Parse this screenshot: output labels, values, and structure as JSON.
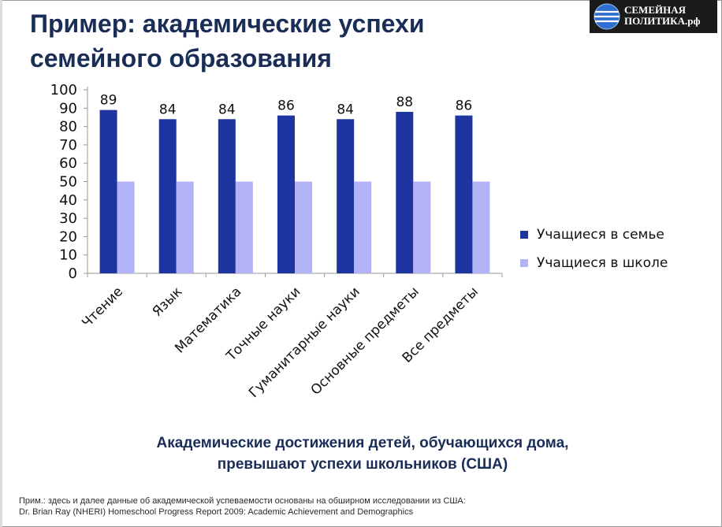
{
  "slide": {
    "title_line1": "Пример: академические успехи",
    "title_line2": "семейного образования",
    "logo_line1": "СЕМЕЙНАЯ",
    "logo_line2": "ПОЛИТИКА.рф",
    "conclusion_line1": "Академические достижения детей, обучающихся дома,",
    "conclusion_line2": "превышают успехи школьников (США)",
    "note_line1": "Прим.: здесь и далее данные об академической успеваемости основаны на обширном исследовании из США:",
    "note_line2": "Dr. Brian Ray (NHERI) Homeschool Progress Report 2009: Academic Achievement and Demographics"
  },
  "colors": {
    "title": "#1a2d57",
    "home_series": "#1e35a0",
    "school_series": "#b3b3f7",
    "axis": "#9a9a9a"
  },
  "chart_data": {
    "type": "bar",
    "title": "",
    "xlabel": "",
    "ylabel": "",
    "ylim": [
      0,
      100
    ],
    "yticks": [
      0,
      10,
      20,
      30,
      40,
      50,
      60,
      70,
      80,
      90,
      100
    ],
    "grid": false,
    "legend_position": "right",
    "categories": [
      "Чтение",
      "Язык",
      "Математика",
      "Точные науки",
      "Гуманитарные науки",
      "Основные предметы",
      "Все предметы"
    ],
    "series": [
      {
        "name": "Учащиеся в семье",
        "values": [
          89,
          84,
          84,
          86,
          84,
          88,
          86
        ],
        "data_labels": [
          "89",
          "84",
          "84",
          "86",
          "84",
          "88",
          "86"
        ]
      },
      {
        "name": "Учащиеся в школе",
        "values": [
          50,
          50,
          50,
          50,
          50,
          50,
          50
        ]
      }
    ]
  }
}
